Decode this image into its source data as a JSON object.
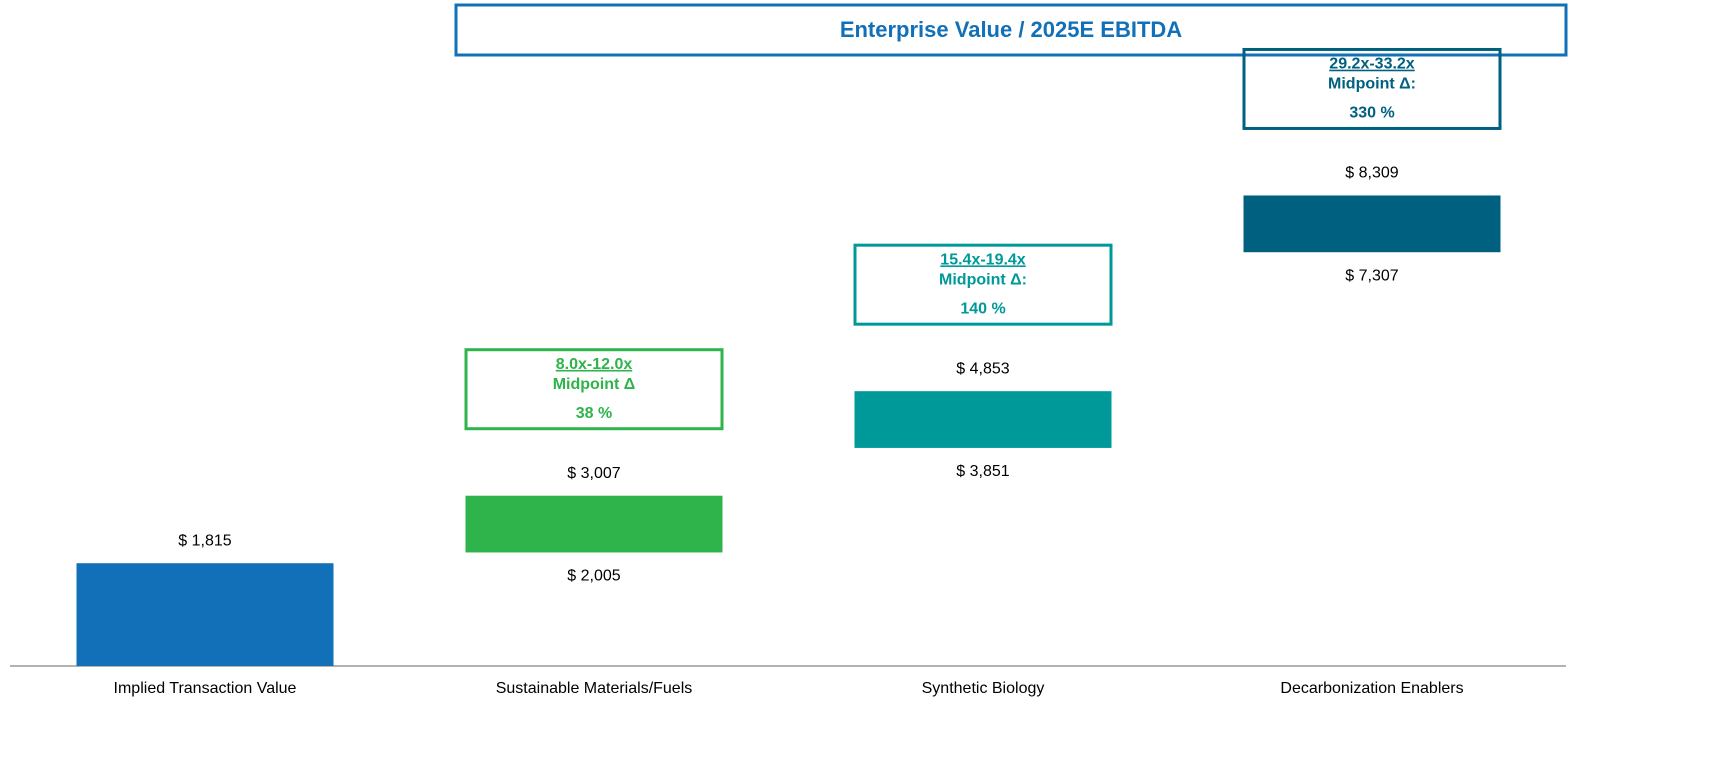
{
  "chart_data": {
    "type": "floating_bar",
    "title": "Enterprise Value / 2025E EBITDA",
    "categories": [
      "Implied Transaction Value",
      "Sustainable Materials/Fuels",
      "Synthetic Biology",
      "Decarbonization Enablers"
    ],
    "values_high": [
      1815,
      3007,
      4853,
      8309
    ],
    "value_labels_high": [
      "$ 1,815",
      "$ 3,007",
      "$ 4,853",
      "$ 8,309"
    ],
    "values_low": [
      null,
      2005,
      3851,
      7307
    ],
    "value_labels_low": [
      null,
      "$ 2,005",
      "$ 3,851",
      "$ 7,307"
    ],
    "colors": [
      "#1170b8",
      "#2fb34b",
      "#009999",
      "#006080"
    ],
    "annotations": [
      null,
      {
        "range": "8.0x-12.0x",
        "label": "Midpoint Δ",
        "delta": "38 %"
      },
      {
        "range": "15.4x-19.4x",
        "label": "Midpoint Δ:",
        "delta": "140 %"
      },
      {
        "range": "29.2x-33.2x",
        "label": "Midpoint Δ:",
        "delta": "330 %"
      }
    ],
    "ylim": [
      0,
      8900
    ]
  }
}
